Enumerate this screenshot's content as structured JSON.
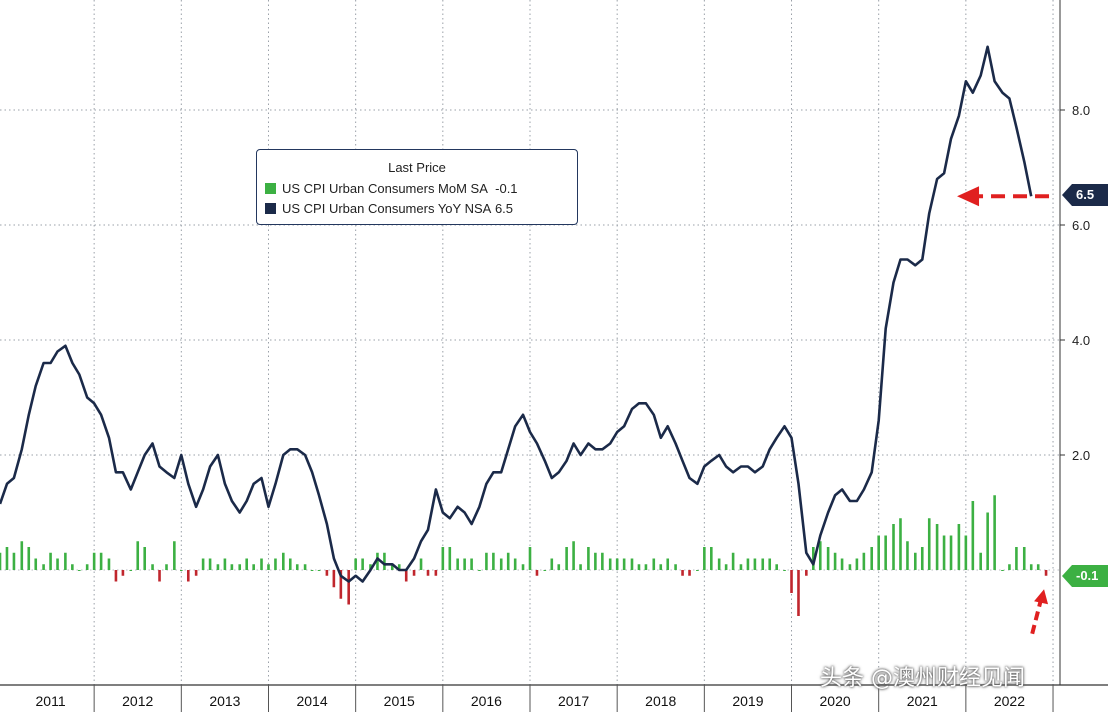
{
  "legend": {
    "title": "Last Price",
    "series": [
      {
        "label": "US CPI Urban Consumers MoM SA",
        "last": "-0.1",
        "color": "#3cb043"
      },
      {
        "label": "US CPI Urban Consumers YoY NSA",
        "last": "6.5",
        "color": "#1b2a49"
      }
    ]
  },
  "badges": {
    "yoy": "6.5",
    "mom": "-0.1"
  },
  "watermark": "头条 @澳州财经见闻",
  "colors": {
    "yoy_line": "#1b2a49",
    "mom_pos": "#3cb043",
    "mom_neg": "#c0262d",
    "annotation": "#e02020"
  },
  "chart_data": {
    "type": "line+bar",
    "x_range": [
      2010.92,
      2023.08
    ],
    "ylim": [
      -2.0,
      10.0
    ],
    "yticks": [
      2.0,
      4.0,
      6.0,
      8.0
    ],
    "ytick_labels": [
      "2.0",
      "4.0",
      "6.0",
      "8.0"
    ],
    "grid": true,
    "legend_position": "top-left",
    "year_labels": [
      "2011",
      "2012",
      "2013",
      "2014",
      "2015",
      "2016",
      "2017",
      "2018",
      "2019",
      "2020",
      "2021",
      "2022"
    ],
    "series": [
      {
        "name": "US CPI Urban Consumers YoY NSA",
        "kind": "line",
        "points": [
          [
            2010.92,
            1.15
          ],
          [
            2011.0,
            1.5
          ],
          [
            2011.08,
            1.6
          ],
          [
            2011.17,
            2.1
          ],
          [
            2011.25,
            2.7
          ],
          [
            2011.33,
            3.2
          ],
          [
            2011.42,
            3.6
          ],
          [
            2011.5,
            3.6
          ],
          [
            2011.58,
            3.8
          ],
          [
            2011.67,
            3.9
          ],
          [
            2011.75,
            3.6
          ],
          [
            2011.83,
            3.4
          ],
          [
            2011.92,
            3.0
          ],
          [
            2012.0,
            2.9
          ],
          [
            2012.08,
            2.7
          ],
          [
            2012.17,
            2.3
          ],
          [
            2012.25,
            1.7
          ],
          [
            2012.33,
            1.7
          ],
          [
            2012.42,
            1.4
          ],
          [
            2012.5,
            1.7
          ],
          [
            2012.58,
            2.0
          ],
          [
            2012.67,
            2.2
          ],
          [
            2012.75,
            1.8
          ],
          [
            2012.83,
            1.7
          ],
          [
            2012.92,
            1.6
          ],
          [
            2013.0,
            2.0
          ],
          [
            2013.08,
            1.5
          ],
          [
            2013.17,
            1.1
          ],
          [
            2013.25,
            1.4
          ],
          [
            2013.33,
            1.8
          ],
          [
            2013.42,
            2.0
          ],
          [
            2013.5,
            1.5
          ],
          [
            2013.58,
            1.2
          ],
          [
            2013.67,
            1.0
          ],
          [
            2013.75,
            1.2
          ],
          [
            2013.83,
            1.5
          ],
          [
            2013.92,
            1.6
          ],
          [
            2014.0,
            1.1
          ],
          [
            2014.08,
            1.5
          ],
          [
            2014.17,
            2.0
          ],
          [
            2014.25,
            2.1
          ],
          [
            2014.33,
            2.1
          ],
          [
            2014.42,
            2.0
          ],
          [
            2014.5,
            1.7
          ],
          [
            2014.58,
            1.3
          ],
          [
            2014.67,
            0.8
          ],
          [
            2014.75,
            0.2
          ],
          [
            2014.83,
            -0.1
          ],
          [
            2014.92,
            -0.2
          ],
          [
            2015.0,
            -0.1
          ],
          [
            2015.08,
            -0.2
          ],
          [
            2015.17,
            0.0
          ],
          [
            2015.25,
            0.2
          ],
          [
            2015.33,
            0.1
          ],
          [
            2015.42,
            0.1
          ],
          [
            2015.5,
            0.0
          ],
          [
            2015.58,
            0.0
          ],
          [
            2015.67,
            0.2
          ],
          [
            2015.75,
            0.5
          ],
          [
            2015.83,
            0.7
          ],
          [
            2015.92,
            1.4
          ],
          [
            2016.0,
            1.0
          ],
          [
            2016.08,
            0.9
          ],
          [
            2016.17,
            1.1
          ],
          [
            2016.25,
            1.0
          ],
          [
            2016.33,
            0.8
          ],
          [
            2016.42,
            1.1
          ],
          [
            2016.5,
            1.5
          ],
          [
            2016.58,
            1.7
          ],
          [
            2016.67,
            1.7
          ],
          [
            2016.75,
            2.1
          ],
          [
            2016.83,
            2.5
          ],
          [
            2016.92,
            2.7
          ],
          [
            2017.0,
            2.4
          ],
          [
            2017.08,
            2.2
          ],
          [
            2017.17,
            1.9
          ],
          [
            2017.25,
            1.6
          ],
          [
            2017.33,
            1.7
          ],
          [
            2017.42,
            1.9
          ],
          [
            2017.5,
            2.2
          ],
          [
            2017.58,
            2.0
          ],
          [
            2017.67,
            2.2
          ],
          [
            2017.75,
            2.1
          ],
          [
            2017.83,
            2.1
          ],
          [
            2017.92,
            2.2
          ],
          [
            2018.0,
            2.4
          ],
          [
            2018.08,
            2.5
          ],
          [
            2018.17,
            2.8
          ],
          [
            2018.25,
            2.9
          ],
          [
            2018.33,
            2.9
          ],
          [
            2018.42,
            2.7
          ],
          [
            2018.5,
            2.3
          ],
          [
            2018.58,
            2.5
          ],
          [
            2018.67,
            2.2
          ],
          [
            2018.75,
            1.9
          ],
          [
            2018.83,
            1.6
          ],
          [
            2018.92,
            1.5
          ],
          [
            2019.0,
            1.8
          ],
          [
            2019.08,
            1.9
          ],
          [
            2019.17,
            2.0
          ],
          [
            2019.25,
            1.8
          ],
          [
            2019.33,
            1.7
          ],
          [
            2019.42,
            1.8
          ],
          [
            2019.5,
            1.8
          ],
          [
            2019.58,
            1.7
          ],
          [
            2019.67,
            1.8
          ],
          [
            2019.75,
            2.1
          ],
          [
            2019.83,
            2.3
          ],
          [
            2019.92,
            2.5
          ],
          [
            2020.0,
            2.3
          ],
          [
            2020.08,
            1.5
          ],
          [
            2020.17,
            0.3
          ],
          [
            2020.25,
            0.1
          ],
          [
            2020.33,
            0.6
          ],
          [
            2020.42,
            1.0
          ],
          [
            2020.5,
            1.3
          ],
          [
            2020.58,
            1.4
          ],
          [
            2020.67,
            1.2
          ],
          [
            2020.75,
            1.2
          ],
          [
            2020.83,
            1.4
          ],
          [
            2020.92,
            1.7
          ],
          [
            2021.0,
            2.6
          ],
          [
            2021.08,
            4.2
          ],
          [
            2021.17,
            5.0
          ],
          [
            2021.25,
            5.4
          ],
          [
            2021.33,
            5.4
          ],
          [
            2021.42,
            5.3
          ],
          [
            2021.5,
            5.4
          ],
          [
            2021.58,
            6.2
          ],
          [
            2021.67,
            6.8
          ],
          [
            2021.75,
            6.9
          ],
          [
            2021.83,
            7.5
          ],
          [
            2021.92,
            7.9
          ],
          [
            2022.0,
            8.5
          ],
          [
            2022.08,
            8.3
          ],
          [
            2022.17,
            8.6
          ],
          [
            2022.25,
            9.1
          ],
          [
            2022.33,
            8.5
          ],
          [
            2022.42,
            8.3
          ],
          [
            2022.5,
            8.2
          ],
          [
            2022.58,
            7.7
          ],
          [
            2022.67,
            7.1
          ],
          [
            2022.75,
            6.5
          ]
        ]
      },
      {
        "name": "US CPI Urban Consumers MoM SA",
        "kind": "bar",
        "points": [
          [
            2010.92,
            0.3
          ],
          [
            2011.0,
            0.4
          ],
          [
            2011.08,
            0.3
          ],
          [
            2011.17,
            0.5
          ],
          [
            2011.25,
            0.4
          ],
          [
            2011.33,
            0.2
          ],
          [
            2011.42,
            0.1
          ],
          [
            2011.5,
            0.3
          ],
          [
            2011.58,
            0.2
          ],
          [
            2011.67,
            0.3
          ],
          [
            2011.75,
            0.1
          ],
          [
            2011.83,
            0.0
          ],
          [
            2011.92,
            0.1
          ],
          [
            2012.0,
            0.3
          ],
          [
            2012.08,
            0.3
          ],
          [
            2012.17,
            0.2
          ],
          [
            2012.25,
            -0.2
          ],
          [
            2012.33,
            -0.1
          ],
          [
            2012.42,
            0.0
          ],
          [
            2012.5,
            0.5
          ],
          [
            2012.58,
            0.4
          ],
          [
            2012.67,
            0.1
          ],
          [
            2012.75,
            -0.2
          ],
          [
            2012.83,
            0.1
          ],
          [
            2012.92,
            0.5
          ],
          [
            2013.0,
            0.0
          ],
          [
            2013.08,
            -0.2
          ],
          [
            2013.17,
            -0.1
          ],
          [
            2013.25,
            0.2
          ],
          [
            2013.33,
            0.2
          ],
          [
            2013.42,
            0.1
          ],
          [
            2013.5,
            0.2
          ],
          [
            2013.58,
            0.1
          ],
          [
            2013.67,
            0.1
          ],
          [
            2013.75,
            0.2
          ],
          [
            2013.83,
            0.1
          ],
          [
            2013.92,
            0.2
          ],
          [
            2014.0,
            0.1
          ],
          [
            2014.08,
            0.2
          ],
          [
            2014.17,
            0.3
          ],
          [
            2014.25,
            0.2
          ],
          [
            2014.33,
            0.1
          ],
          [
            2014.42,
            0.1
          ],
          [
            2014.5,
            0.0
          ],
          [
            2014.58,
            0.0
          ],
          [
            2014.67,
            -0.1
          ],
          [
            2014.75,
            -0.3
          ],
          [
            2014.83,
            -0.5
          ],
          [
            2014.92,
            -0.6
          ],
          [
            2015.0,
            0.2
          ],
          [
            2015.08,
            0.2
          ],
          [
            2015.17,
            0.1
          ],
          [
            2015.25,
            0.3
          ],
          [
            2015.33,
            0.3
          ],
          [
            2015.42,
            0.1
          ],
          [
            2015.5,
            0.1
          ],
          [
            2015.58,
            -0.2
          ],
          [
            2015.67,
            -0.1
          ],
          [
            2015.75,
            0.2
          ],
          [
            2015.83,
            -0.1
          ],
          [
            2015.92,
            -0.1
          ],
          [
            2016.0,
            0.4
          ],
          [
            2016.08,
            0.4
          ],
          [
            2016.17,
            0.2
          ],
          [
            2016.25,
            0.2
          ],
          [
            2016.33,
            0.2
          ],
          [
            2016.42,
            0.0
          ],
          [
            2016.5,
            0.3
          ],
          [
            2016.58,
            0.3
          ],
          [
            2016.67,
            0.2
          ],
          [
            2016.75,
            0.3
          ],
          [
            2016.83,
            0.2
          ],
          [
            2016.92,
            0.1
          ],
          [
            2017.0,
            0.4
          ],
          [
            2017.08,
            -0.1
          ],
          [
            2017.17,
            0.0
          ],
          [
            2017.25,
            0.2
          ],
          [
            2017.33,
            0.1
          ],
          [
            2017.42,
            0.4
          ],
          [
            2017.5,
            0.5
          ],
          [
            2017.58,
            0.1
          ],
          [
            2017.67,
            0.4
          ],
          [
            2017.75,
            0.3
          ],
          [
            2017.83,
            0.3
          ],
          [
            2017.92,
            0.2
          ],
          [
            2018.0,
            0.2
          ],
          [
            2018.08,
            0.2
          ],
          [
            2018.17,
            0.2
          ],
          [
            2018.25,
            0.1
          ],
          [
            2018.33,
            0.1
          ],
          [
            2018.42,
            0.2
          ],
          [
            2018.5,
            0.1
          ],
          [
            2018.58,
            0.2
          ],
          [
            2018.67,
            0.1
          ],
          [
            2018.75,
            -0.1
          ],
          [
            2018.83,
            -0.1
          ],
          [
            2018.92,
            0.0
          ],
          [
            2019.0,
            0.4
          ],
          [
            2019.08,
            0.4
          ],
          [
            2019.17,
            0.2
          ],
          [
            2019.25,
            0.1
          ],
          [
            2019.33,
            0.3
          ],
          [
            2019.42,
            0.1
          ],
          [
            2019.5,
            0.2
          ],
          [
            2019.58,
            0.2
          ],
          [
            2019.67,
            0.2
          ],
          [
            2019.75,
            0.2
          ],
          [
            2019.83,
            0.1
          ],
          [
            2019.92,
            0.0
          ],
          [
            2020.0,
            -0.4
          ],
          [
            2020.08,
            -0.8
          ],
          [
            2020.17,
            -0.1
          ],
          [
            2020.25,
            0.4
          ],
          [
            2020.33,
            0.5
          ],
          [
            2020.42,
            0.4
          ],
          [
            2020.5,
            0.3
          ],
          [
            2020.58,
            0.2
          ],
          [
            2020.67,
            0.1
          ],
          [
            2020.75,
            0.2
          ],
          [
            2020.83,
            0.3
          ],
          [
            2020.92,
            0.4
          ],
          [
            2021.0,
            0.6
          ],
          [
            2021.08,
            0.6
          ],
          [
            2021.17,
            0.8
          ],
          [
            2021.25,
            0.9
          ],
          [
            2021.33,
            0.5
          ],
          [
            2021.42,
            0.3
          ],
          [
            2021.5,
            0.4
          ],
          [
            2021.58,
            0.9
          ],
          [
            2021.67,
            0.8
          ],
          [
            2021.75,
            0.6
          ],
          [
            2021.83,
            0.6
          ],
          [
            2021.92,
            0.8
          ],
          [
            2022.0,
            0.6
          ],
          [
            2022.08,
            1.2
          ],
          [
            2022.17,
            0.3
          ],
          [
            2022.25,
            1.0
          ],
          [
            2022.33,
            1.3
          ],
          [
            2022.42,
            0.0
          ],
          [
            2022.5,
            0.1
          ],
          [
            2022.58,
            0.4
          ],
          [
            2022.67,
            0.4
          ],
          [
            2022.75,
            0.1
          ],
          [
            2022.83,
            0.1
          ],
          [
            2022.92,
            -0.1
          ]
        ]
      }
    ],
    "annotations": [
      {
        "type": "arrow",
        "from": [
          2023.0,
          6.5
        ],
        "to": [
          2021.83,
          6.5
        ],
        "style": "dashed"
      },
      {
        "type": "arrow",
        "from": [
          2022.83,
          -0.9
        ],
        "to": [
          2022.92,
          -0.3
        ],
        "style": "dashed"
      }
    ]
  }
}
